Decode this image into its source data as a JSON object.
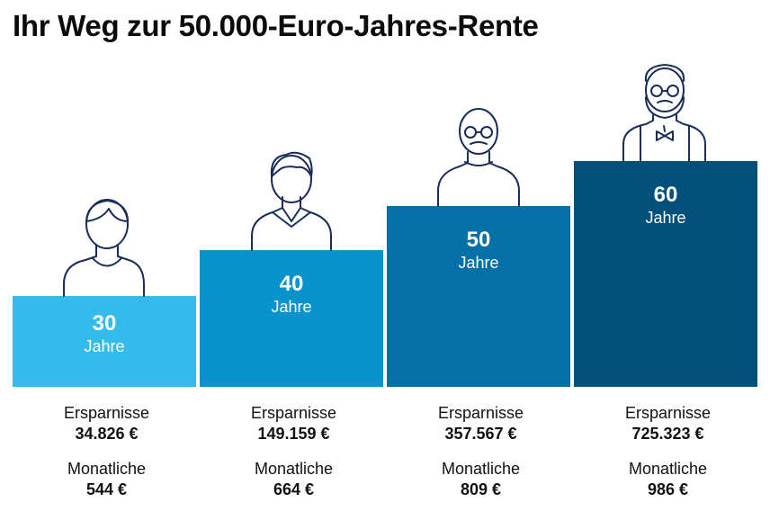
{
  "title": "Ihr Weg zur 50.000-Euro-Jahres-Rente",
  "chart_data": {
    "type": "bar",
    "title": "Ihr Weg zur 50.000-Euro-Jahres-Rente",
    "categories": [
      "30 Jahre",
      "40 Jahre",
      "50 Jahre",
      "60 Jahre"
    ],
    "series": [
      {
        "name": "Ersparnisse",
        "unit": "€",
        "values": [
          34826,
          149159,
          357567,
          725323
        ]
      },
      {
        "name": "Monatliche",
        "unit": "€",
        "values": [
          544,
          664,
          809,
          986
        ]
      }
    ],
    "colors": [
      "#33bbec",
      "#0993cc",
      "#0570a6",
      "#03517a"
    ]
  },
  "steps": [
    {
      "age": "30",
      "unit": "Jahre",
      "savings_label": "Ersparnisse",
      "savings": "34.826 €",
      "monthly_label": "Monatliche",
      "monthly": "544 €"
    },
    {
      "age": "40",
      "unit": "Jahre",
      "savings_label": "Ersparnisse",
      "savings": "149.159 €",
      "monthly_label": "Monatliche",
      "monthly": "664 €"
    },
    {
      "age": "50",
      "unit": "Jahre",
      "savings_label": "Ersparnisse",
      "savings": "357.567 €",
      "monthly_label": "Monatliche",
      "monthly": "809 €"
    },
    {
      "age": "60",
      "unit": "Jahre",
      "savings_label": "Ersparnisse",
      "savings": "725.323 €",
      "monthly_label": "Monatliche",
      "monthly": "986 €"
    }
  ],
  "icons": [
    "person-young-icon",
    "person-adult-icon",
    "person-glasses-icon",
    "person-bearded-icon"
  ]
}
